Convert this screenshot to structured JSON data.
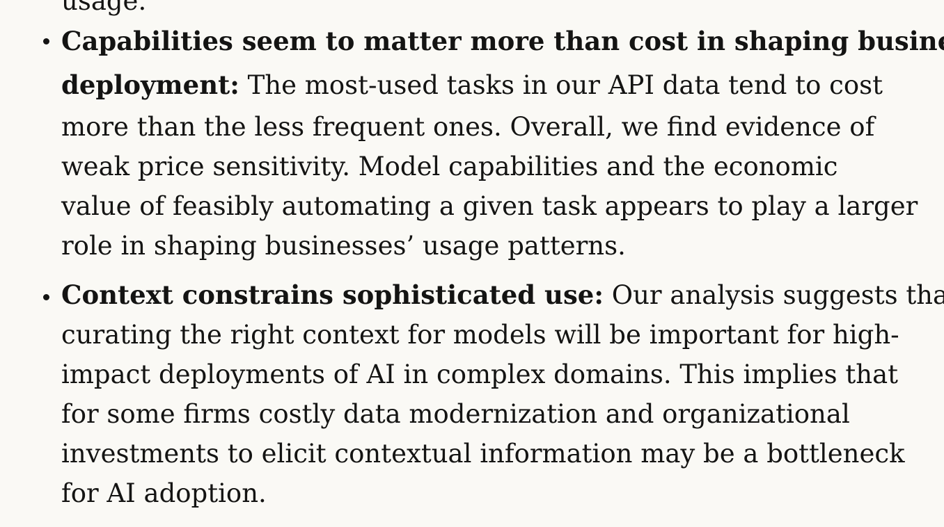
{
  "clipped_top_text": "usage.",
  "bullets": [
    {
      "lines": [
        {
          "bold": "Capabilities seem to matter more than cost in shaping business",
          "text": ""
        },
        {
          "bold": "deployment:",
          "text": " The most-used tasks in our API data tend to cost"
        },
        {
          "bold": "",
          "text": "more than the less frequent ones. Overall, we find evidence of"
        },
        {
          "bold": "",
          "text": "weak price sensitivity. Model capabilities and the economic"
        },
        {
          "bold": "",
          "text": "value of feasibly automating a given task appears to play a larger"
        },
        {
          "bold": "",
          "text": "role in shaping businesses’ usage patterns."
        }
      ]
    },
    {
      "lines": [
        {
          "bold": "Context constrains sophisticated use:",
          "text": " Our analysis suggests that"
        },
        {
          "bold": "",
          "text": "curating the right context for models will be important for high-"
        },
        {
          "bold": "",
          "text": "impact deployments of AI in complex domains. This implies that"
        },
        {
          "bold": "",
          "text": "for some firms costly data modernization and organizational"
        },
        {
          "bold": "",
          "text": "investments to elicit contextual information may be a bottleneck"
        },
        {
          "bold": "",
          "text": "for AI adoption."
        }
      ]
    }
  ]
}
